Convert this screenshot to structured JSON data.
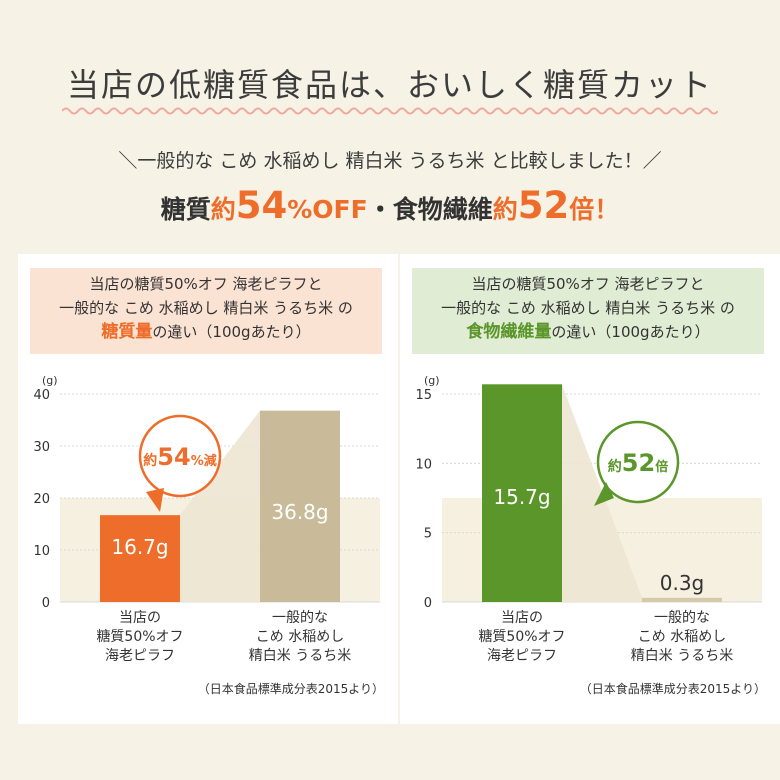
{
  "title": "当店の低糖質食品は、おいしく糖質カット",
  "subtitle": "＼一般的な こめ 水稲めし 精白米 うるち米 と比較しました！／",
  "headline": {
    "part1": "糖質",
    "part2": "約",
    "part3": "54",
    "part4": "%OFF",
    "part5": "・食物繊維",
    "part6": "約",
    "part7": "52",
    "part8": "倍！"
  },
  "colors": {
    "orange": "#ee6d2a",
    "tan": "#c9bb99",
    "green": "#5a962a",
    "light_tan": "#d5c9a9"
  },
  "chart_data": [
    {
      "type": "bar",
      "header": {
        "line1": "当店の糖質50%オフ 海老ピラフと",
        "line2": "一般的な こめ 水稲めし 精白米 うるち米 の",
        "emph": "糖質量",
        "line3_rest": "の違い（100gあたり）"
      },
      "unit": "(g)",
      "ylim": [
        0,
        40
      ],
      "yticks": [
        "0",
        "10",
        "20",
        "30",
        "40"
      ],
      "categories": [
        [
          "当店の",
          "糖質50%オフ",
          "海老ピラフ"
        ],
        [
          "一般的な",
          "こめ 水稲めし",
          "精白米 うるち米"
        ]
      ],
      "values": [
        16.7,
        36.8
      ],
      "value_labels": [
        "16.7g",
        "36.8g"
      ],
      "badge": {
        "pre": "約",
        "num": "54",
        "post": "%減"
      },
      "source": "（日本食品標準成分表2015より）"
    },
    {
      "type": "bar",
      "header": {
        "line1": "当店の糖質50%オフ 海老ピラフと",
        "line2": "一般的な こめ 水稲めし 精白米 うるち米 の",
        "emph": "食物繊維量",
        "line3_rest": "の違い（100gあたり）"
      },
      "unit": "(g)",
      "ylim": [
        0,
        15
      ],
      "yticks": [
        "0",
        "5",
        "10",
        "15"
      ],
      "categories": [
        [
          "当店の",
          "糖質50%オフ",
          "海老ピラフ"
        ],
        [
          "一般的な",
          "こめ 水稲めし",
          "精白米 うるち米"
        ]
      ],
      "values": [
        15.7,
        0.3
      ],
      "value_labels": [
        "15.7g",
        "0.3g"
      ],
      "badge": {
        "pre": "約",
        "num": "52",
        "post": "倍"
      },
      "source": "（日本食品標準成分表2015より）"
    }
  ]
}
